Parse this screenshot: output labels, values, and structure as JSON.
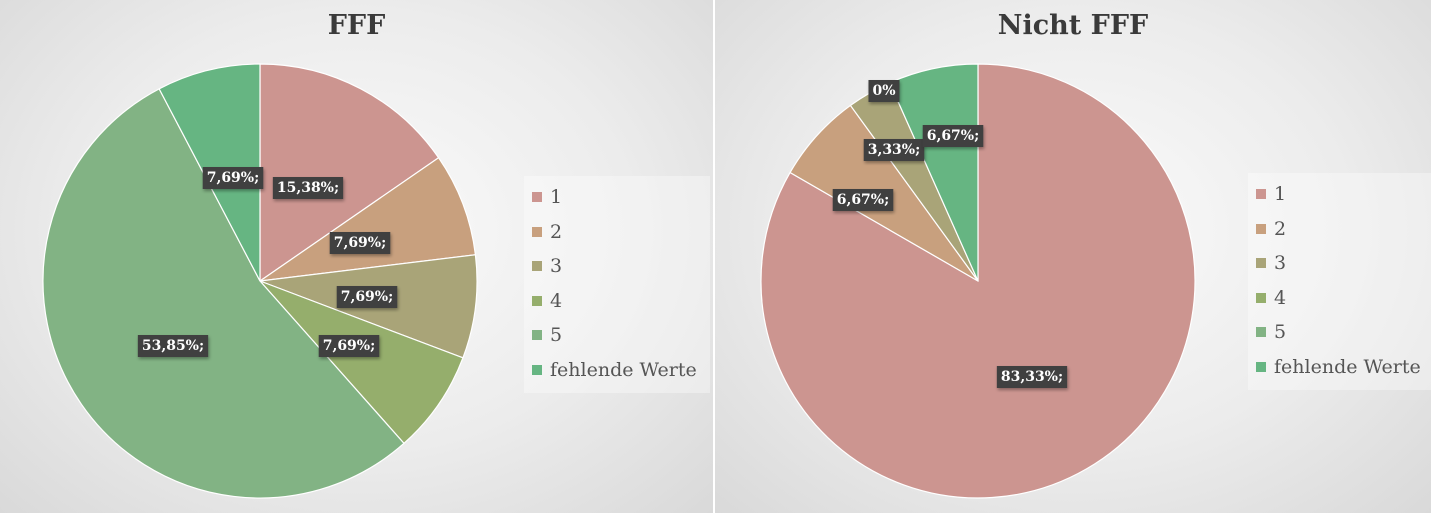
{
  "chart_data": [
    {
      "type": "pie",
      "title": "FFF",
      "categories": [
        "1",
        "2",
        "3",
        "4",
        "5",
        "fehlende Werte"
      ],
      "values": [
        15.38,
        7.69,
        7.69,
        7.69,
        53.85,
        7.69
      ],
      "labels": [
        "15,38%;",
        "7,69%;",
        "7,69%;",
        "7,69%;",
        "53,85%;",
        "7,69%;"
      ],
      "colors": [
        "#cc9590",
        "#c8a07e",
        "#a9a478",
        "#95ae6c",
        "#82b384",
        "#66b582"
      ],
      "legend_position": "right"
    },
    {
      "type": "pie",
      "title": "Nicht FFF",
      "categories": [
        "1",
        "2",
        "3",
        "4",
        "5",
        "fehlende Werte"
      ],
      "values": [
        83.33,
        6.67,
        3.33,
        0,
        0,
        6.67
      ],
      "labels": [
        "83,33%;",
        "6,67%;",
        "3,33%;",
        "0%",
        "",
        "6,67%;"
      ],
      "colors": [
        "#cc9590",
        "#c8a07e",
        "#a9a478",
        "#95ae6c",
        "#82b384",
        "#66b582"
      ],
      "legend_position": "right"
    }
  ]
}
